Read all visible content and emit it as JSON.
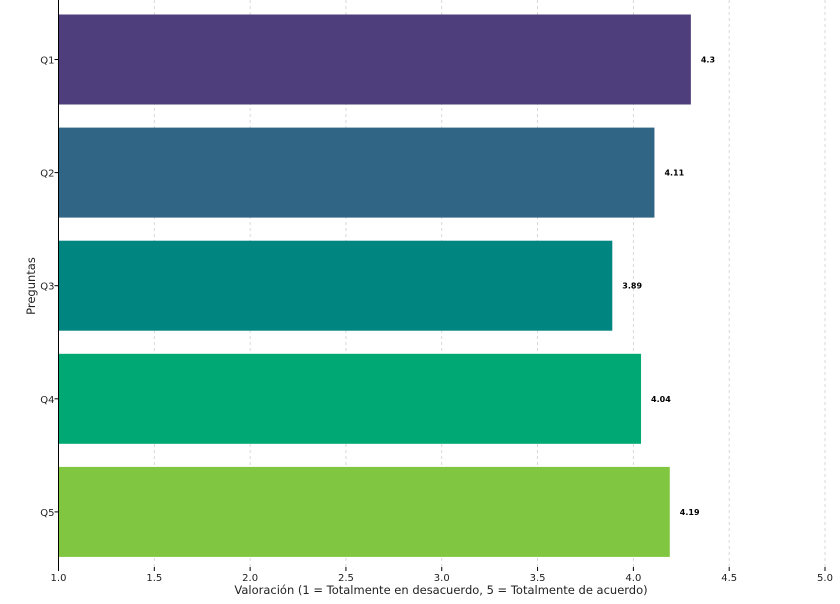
{
  "chart_data": {
    "type": "bar",
    "orientation": "horizontal",
    "title": "",
    "xlabel": "Valoración (1 = Totalmente en desacuerdo, 5 = Totalmente de acuerdo)",
    "ylabel": "Preguntas",
    "categories": [
      "Q1",
      "Q2",
      "Q3",
      "Q4",
      "Q5"
    ],
    "values": [
      4.3,
      4.11,
      3.89,
      4.04,
      4.19
    ],
    "value_labels": [
      "4.3",
      "4.11",
      "3.89",
      "4.04",
      "4.19"
    ],
    "colors": [
      "#4f3e7c",
      "#306585",
      "#008581",
      "#00a873",
      "#81c641"
    ],
    "xlim": [
      1.0,
      5.0
    ],
    "xticks": [
      1.0,
      1.5,
      2.0,
      2.5,
      3.0,
      3.5,
      4.0,
      4.5,
      5.0
    ],
    "xtick_labels": [
      "1.0",
      "1.5",
      "2.0",
      "2.5",
      "3.0",
      "3.5",
      "4.0",
      "4.5",
      "5.0"
    ],
    "grid": "vertical-dashed",
    "legend": "none"
  }
}
